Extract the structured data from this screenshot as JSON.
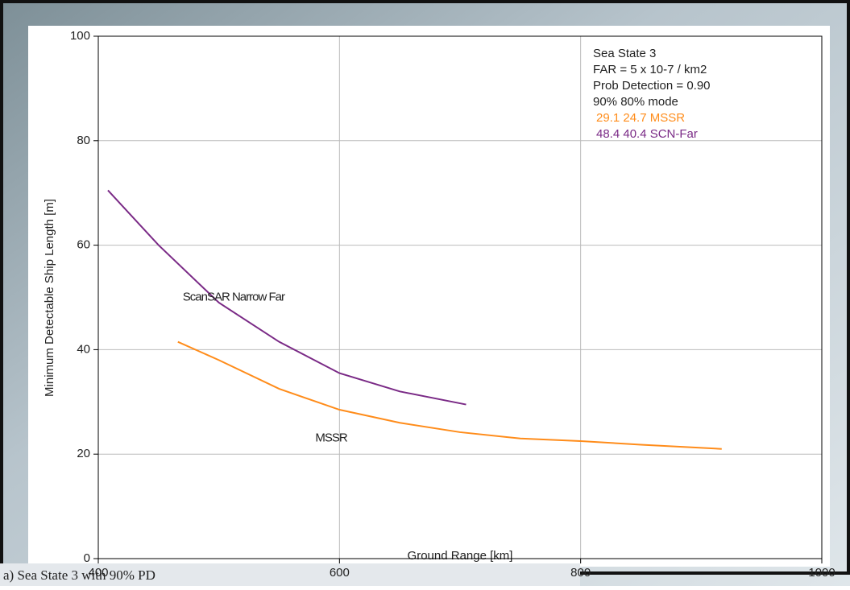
{
  "chart_data": {
    "type": "line",
    "x_label": "Ground Range [km]",
    "y_label": "Minimum Detectable Ship Length [m]",
    "xlim": [
      400,
      1000
    ],
    "xticks": [
      400,
      600,
      800,
      1000
    ],
    "ylim": [
      0,
      100
    ],
    "yticks": [
      0,
      20,
      40,
      60,
      80,
      100
    ],
    "grid": true,
    "series": [
      {
        "color": "#7a2a86",
        "x": [
          408,
          450,
          500,
          550,
          600,
          650,
          705
        ],
        "values": [
          70.5,
          60,
          49,
          41.5,
          35.5,
          32,
          29.5
        ]
      },
      {
        "color": "#ff8c1a",
        "x": [
          466,
          500,
          550,
          600,
          650,
          700,
          750,
          800,
          850,
          917
        ],
        "values": [
          41.5,
          38,
          32.5,
          28.5,
          26,
          24.2,
          23,
          22.5,
          21.8,
          21
        ]
      }
    ],
    "info_lines": [
      "Sea State 3",
      "FAR = 5 x 10-7 / km2",
      "Prob Detection =  0.90",
      "90%  80%  mode"
    ],
    "info_series_lines": [
      {
        "text": "29.1  24.7 MSSR",
        "color": "#ff8c1a"
      },
      {
        "text": "48.4  40.4 SCN-Far",
        "color": "#7a2a86"
      }
    ],
    "annotations": [
      {
        "text": "ScanSAR Narrow Far",
        "x": 470,
        "y": 50
      },
      {
        "text": "MSSR",
        "x": 580,
        "y": 23
      }
    ],
    "caption": "a)  Sea State 3 with 90% PD"
  }
}
